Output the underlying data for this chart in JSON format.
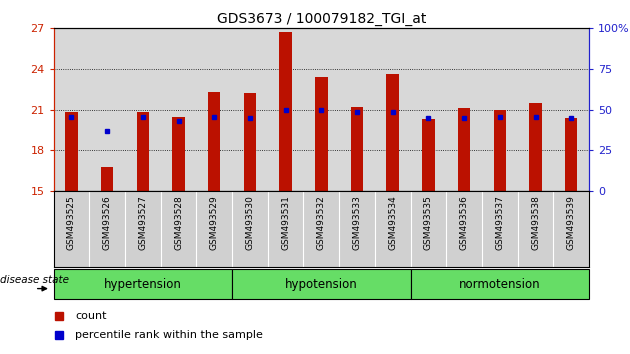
{
  "title": "GDS3673 / 100079182_TGI_at",
  "samples": [
    "GSM493525",
    "GSM493526",
    "GSM493527",
    "GSM493528",
    "GSM493529",
    "GSM493530",
    "GSM493531",
    "GSM493532",
    "GSM493533",
    "GSM493534",
    "GSM493535",
    "GSM493536",
    "GSM493537",
    "GSM493538",
    "GSM493539"
  ],
  "red_values": [
    20.8,
    16.8,
    20.8,
    20.5,
    22.3,
    22.2,
    26.7,
    23.4,
    21.2,
    23.6,
    20.3,
    21.1,
    21.0,
    21.5,
    20.4
  ],
  "blue_values": [
    20.5,
    19.4,
    20.5,
    20.2,
    20.5,
    20.4,
    21.0,
    21.0,
    20.8,
    20.8,
    20.4,
    20.4,
    20.5,
    20.5,
    20.4
  ],
  "ylim_left": [
    15,
    27
  ],
  "yticks_left": [
    15,
    18,
    21,
    24,
    27
  ],
  "yticks_right": [
    0,
    25,
    50,
    75,
    100
  ],
  "ylim_right": [
    0,
    100
  ],
  "bar_color": "#bb1100",
  "dot_color": "#0000cc",
  "background_color": "#ffffff",
  "plot_bg_color": "#d8d8d8",
  "tick_bg_color": "#d0d0d0",
  "left_axis_color": "#cc2200",
  "right_axis_color": "#2222cc",
  "bar_width": 0.35,
  "group_color": "#66dd66",
  "disease_state_label": "disease state",
  "groups": [
    {
      "label": "hypertension",
      "start": 0,
      "end": 4
    },
    {
      "label": "hypotension",
      "start": 5,
      "end": 9
    },
    {
      "label": "normotension",
      "start": 10,
      "end": 14
    }
  ]
}
